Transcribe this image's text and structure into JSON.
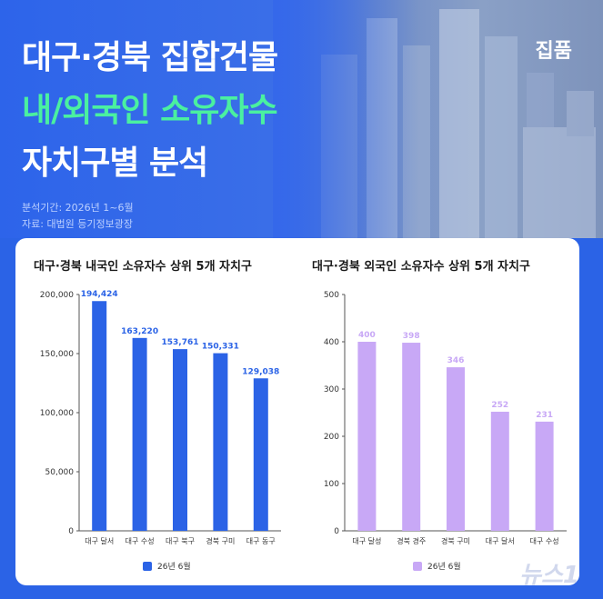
{
  "header": {
    "title_line1": "대구·경북 집합건물",
    "title_line2": "내/외국인 소유자수",
    "title_line3": "자치구별 분석",
    "brand": "집품",
    "period": "분석기간: 2026년 1~6월",
    "source": "자료: 대법원 등기정보광장"
  },
  "colors": {
    "domestic_bar": "#2b63e6",
    "foreign_bar": "#c8a8f6",
    "domestic_label": "#2b63e6",
    "foreign_label": "#c8a8f6",
    "highlight_title": "#4af0a0"
  },
  "chart_data": [
    {
      "type": "bar",
      "title": "대구·경북 내국인 소유자수 상위 5개 자치구",
      "categories": [
        "대구 달서",
        "대구 수성",
        "대구 북구",
        "경북 구미",
        "대구 동구"
      ],
      "series": [
        {
          "name": "26년 6월",
          "values": [
            194424,
            163220,
            153761,
            150331,
            129038
          ]
        }
      ],
      "value_labels": [
        "194,424",
        "163,220",
        "153,761",
        "150,331",
        "129,038"
      ],
      "yticks": [
        "0",
        "50,000",
        "100,000",
        "150,000",
        "200,000"
      ],
      "ylim": [
        0,
        200000
      ],
      "legend_position": "bottom",
      "grid": false
    },
    {
      "type": "bar",
      "title": "대구·경북 외국인 소유자수 상위 5개 자치구",
      "categories": [
        "대구 달성",
        "경북 경주",
        "경북 구미",
        "대구 달서",
        "대구 수성"
      ],
      "series": [
        {
          "name": "26년 6월",
          "values": [
            400,
            398,
            346,
            252,
            231
          ]
        }
      ],
      "value_labels": [
        "400",
        "398",
        "346",
        "252",
        "231"
      ],
      "yticks": [
        "0",
        "100",
        "200",
        "300",
        "400",
        "500"
      ],
      "ylim": [
        0,
        500
      ],
      "legend_position": "bottom",
      "grid": false
    }
  ],
  "watermark": "뉴스1"
}
